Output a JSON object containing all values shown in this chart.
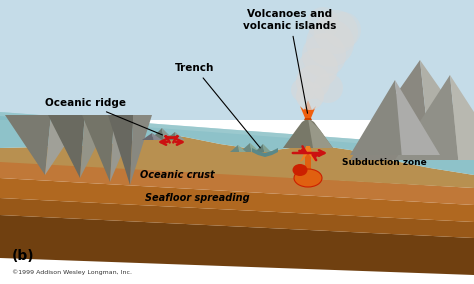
{
  "labels": {
    "volcanoes": "Volcanoes and\nvolcanic islands",
    "trench": "Trench",
    "oceanic_ridge": "Oceanic ridge",
    "oceanic_crust": "Oceanic crust",
    "seafloor": "Seafloor spreading",
    "subduction": "Subduction zone",
    "b_label": "(b)",
    "copyright": "©1999 Addison Wesley Longman, Inc."
  },
  "colors": {
    "white_bg": "#ffffff",
    "sky": "#c5dce8",
    "ocean_blue": "#7ab8c0",
    "ocean_light": "#a8d0d4",
    "ocean_dark": "#5a9098",
    "crust_top": "#8aaa9a",
    "crust_side": "#6a8a7a",
    "layer1_top": "#c8a060",
    "layer1_side": "#b89050",
    "layer2_top": "#c07838",
    "layer2_side": "#a86828",
    "layer3_top": "#b06820",
    "layer3_side": "#985818",
    "layer4_top": "#a05818",
    "layer4_side": "#884808",
    "bottom": "#704010",
    "mountain_dark": "#7a7a72",
    "mountain_mid": "#9a9a90",
    "mountain_light": "#b8b8b0",
    "mountain_snow": "#d8d8d0",
    "right_mount_dark": "#888880",
    "right_mount_light": "#b0b0a8",
    "arrow_red": "#cc1111",
    "lava_orange": "#e85010",
    "lava_yellow": "#f0a020",
    "magma_red": "#cc2000",
    "smoke1": "#c8c8c8",
    "smoke2": "#d8d8d8",
    "smoke3": "#e0e0e0"
  }
}
